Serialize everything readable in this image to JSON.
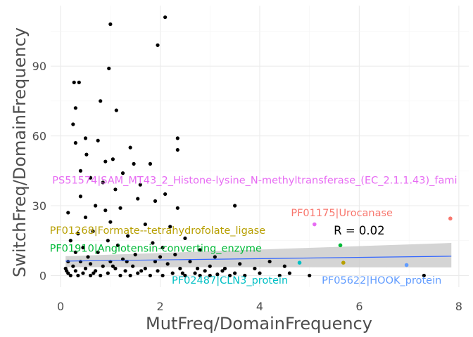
{
  "chart_data": {
    "type": "scatter",
    "title": "",
    "xlabel": "MutFreq/DomainFrequency",
    "ylabel": "SwitchFreq/DomainFrequency",
    "xlim": [
      -0.2,
      8.2
    ],
    "ylim": [
      -5,
      116
    ],
    "x_ticks": [
      0,
      2,
      4,
      6,
      8
    ],
    "y_ticks": [
      0,
      30,
      60,
      90
    ],
    "grid": true,
    "background": "#ffffff",
    "correlation_label": "R = 0.02",
    "trend_line": {
      "color": "#3366ff",
      "x": [
        0.1,
        7.85
      ],
      "y": [
        6.2,
        8.3
      ],
      "ci_color": "#cccccc",
      "ci_lower": [
        3.6,
        3.5
      ],
      "ci_upper": [
        8.3,
        14.0
      ]
    },
    "points": [
      [
        2.1,
        111
      ],
      [
        1.0,
        108
      ],
      [
        1.95,
        99
      ],
      [
        0.97,
        89
      ],
      [
        0.27,
        83
      ],
      [
        0.37,
        83
      ],
      [
        0.8,
        75
      ],
      [
        0.3,
        72
      ],
      [
        1.12,
        71
      ],
      [
        0.25,
        65
      ],
      [
        0.5,
        59
      ],
      [
        2.35,
        59
      ],
      [
        0.75,
        58
      ],
      [
        0.3,
        57
      ],
      [
        1.4,
        55
      ],
      [
        2.35,
        54
      ],
      [
        0.52,
        52
      ],
      [
        1.05,
        50
      ],
      [
        0.9,
        49
      ],
      [
        1.47,
        48
      ],
      [
        1.8,
        48
      ],
      [
        0.4,
        45
      ],
      [
        1.25,
        44
      ],
      [
        0.6,
        42
      ],
      [
        0.85,
        40
      ],
      [
        1.6,
        39
      ],
      [
        1.1,
        37
      ],
      [
        2.1,
        35
      ],
      [
        0.4,
        34
      ],
      [
        1.55,
        33
      ],
      [
        1.9,
        32
      ],
      [
        3.5,
        30
      ],
      [
        0.7,
        30
      ],
      [
        0.15,
        27
      ],
      [
        0.9,
        28
      ],
      [
        1.2,
        29
      ],
      [
        2.35,
        29
      ],
      [
        0.5,
        25
      ],
      [
        1.0,
        23
      ],
      [
        1.7,
        22
      ],
      [
        2.2,
        21
      ],
      [
        0.35,
        18
      ],
      [
        0.65,
        19
      ],
      [
        1.35,
        17
      ],
      [
        2.5,
        16
      ],
      [
        0.2,
        15
      ],
      [
        0.95,
        15
      ],
      [
        1.85,
        14
      ],
      [
        0.45,
        12
      ],
      [
        1.15,
        13
      ],
      [
        2.05,
        12
      ],
      [
        2.8,
        11
      ],
      [
        0.3,
        10
      ],
      [
        0.75,
        10
      ],
      [
        1.5,
        9
      ],
      [
        2.3,
        9
      ],
      [
        3.1,
        8
      ],
      [
        0.55,
        8
      ],
      [
        1.25,
        7
      ],
      [
        0.15,
        6
      ],
      [
        0.6,
        5
      ],
      [
        1.0,
        6
      ],
      [
        1.9,
        6
      ],
      [
        2.6,
        6
      ],
      [
        3.6,
        5
      ],
      [
        4.2,
        6
      ],
      [
        4.5,
        4
      ],
      [
        0.25,
        4
      ],
      [
        0.85,
        4
      ],
      [
        1.45,
        4
      ],
      [
        2.15,
        5
      ],
      [
        3.0,
        4
      ],
      [
        3.9,
        3
      ],
      [
        0.1,
        3
      ],
      [
        0.5,
        3
      ],
      [
        1.1,
        3
      ],
      [
        1.7,
        3
      ],
      [
        2.4,
        3
      ],
      [
        2.9,
        2
      ],
      [
        3.3,
        3
      ],
      [
        0.3,
        2
      ],
      [
        0.7,
        2
      ],
      [
        1.3,
        2
      ],
      [
        1.95,
        2
      ],
      [
        2.7,
        1
      ],
      [
        3.5,
        1
      ],
      [
        4.0,
        1
      ],
      [
        4.6,
        1
      ],
      [
        0.15,
        1
      ],
      [
        0.45,
        1
      ],
      [
        0.95,
        1
      ],
      [
        1.55,
        1
      ],
      [
        2.25,
        1
      ],
      [
        3.15,
        0.5
      ],
      [
        0.2,
        0
      ],
      [
        0.6,
        0
      ],
      [
        1.2,
        0
      ],
      [
        1.8,
        0
      ],
      [
        2.5,
        0
      ],
      [
        3.0,
        0
      ],
      [
        3.7,
        0
      ],
      [
        4.4,
        0
      ],
      [
        5.0,
        0
      ],
      [
        7.3,
        0
      ],
      [
        0.35,
        0
      ],
      [
        0.8,
        0
      ],
      [
        1.4,
        0
      ],
      [
        2.05,
        0
      ],
      [
        2.8,
        0
      ],
      [
        3.4,
        0
      ],
      [
        0.12,
        2
      ],
      [
        0.4,
        6
      ],
      [
        0.66,
        1
      ],
      [
        1.05,
        4
      ],
      [
        1.33,
        6
      ],
      [
        1.62,
        2
      ],
      [
        2.0,
        8
      ],
      [
        2.45,
        1
      ],
      [
        2.75,
        3
      ],
      [
        3.25,
        2
      ]
    ],
    "highlighted": [
      {
        "x": 7.83,
        "y": 24.5,
        "label": "",
        "color": "#f8766d"
      },
      {
        "x": 5.1,
        "y": 22.0,
        "label": "",
        "color": "#e76bf3"
      },
      {
        "x": 5.62,
        "y": 13.0,
        "label": "",
        "color": "#00ba38"
      },
      {
        "x": 5.68,
        "y": 5.5,
        "label": "",
        "color": "#b79f00"
      },
      {
        "x": 6.95,
        "y": 4.5,
        "label": "",
        "color": "#619cff"
      },
      {
        "x": 4.8,
        "y": 5.5,
        "label": "",
        "color": "#00bfc4"
      }
    ],
    "annotations": [
      {
        "text": "PS51574|SAM_MT43_2_Histone-lysine_N-methyltransferase_(EC_2.1.1.43)_fami",
        "x": 3.9,
        "y": 41,
        "color": "#e76bf3",
        "anchor": "middle"
      },
      {
        "text": "PF01175|Urocanase",
        "x": 5.65,
        "y": 27,
        "color": "#f8766d",
        "anchor": "middle"
      },
      {
        "text": "PF01268|Formate--tetrahydrofolate_ligase",
        "x": -0.22,
        "y": 19.5,
        "color": "#b79f00",
        "anchor": "start"
      },
      {
        "text": "PF01910|Angiotensin-converting_enzyme",
        "x": -0.22,
        "y": 11.8,
        "color": "#00ba38",
        "anchor": "start"
      },
      {
        "text": "PF02487|CLN3_protein",
        "x": 3.4,
        "y": -2,
        "color": "#00bfc4",
        "anchor": "middle"
      },
      {
        "text": "PF05622|HOOK_protein",
        "x": 6.45,
        "y": -2,
        "color": "#619cff",
        "anchor": "middle"
      }
    ],
    "corr_position": {
      "x": 6.0,
      "y": 19.5
    }
  }
}
